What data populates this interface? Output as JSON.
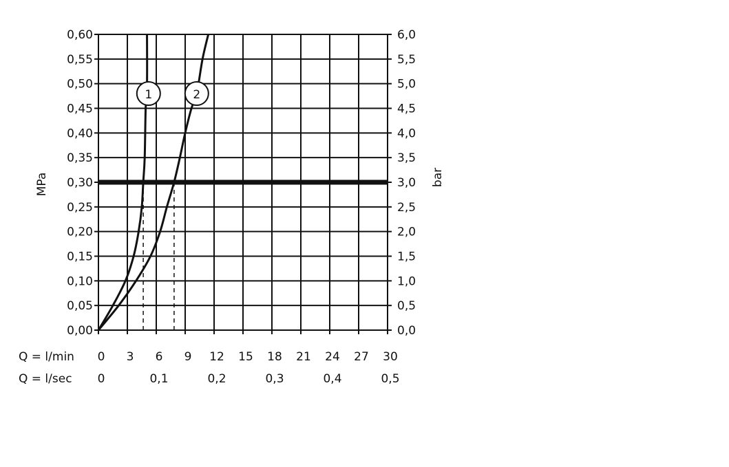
{
  "chart_data": {
    "type": "line",
    "ylabel_left": "MPa",
    "ylabel_right": "bar",
    "xlabel_rows": [
      {
        "label": "Q = l/min",
        "ticks": [
          0,
          3,
          6,
          9,
          12,
          15,
          18,
          21,
          24,
          27,
          30
        ],
        "tick_labels": [
          "0",
          "3",
          "6",
          "9",
          "12",
          "15",
          "18",
          "21",
          "24",
          "27",
          "30"
        ]
      },
      {
        "label": "Q = l/sec",
        "ticks": [
          0,
          6,
          12,
          18,
          24,
          30
        ],
        "tick_labels": [
          "0",
          "0,1",
          "0,2",
          "0,3",
          "0,4",
          "0,5"
        ]
      }
    ],
    "xlim": [
      0,
      30
    ],
    "ylim": [
      0,
      0.6
    ],
    "y_ticks": [
      0,
      0.05,
      0.1,
      0.15,
      0.2,
      0.25,
      0.3,
      0.35,
      0.4,
      0.45,
      0.5,
      0.55,
      0.6
    ],
    "y_tick_labels_left": [
      "0,00",
      "0,05",
      "0,10",
      "0,15",
      "0,20",
      "0,25",
      "0,30",
      "0,35",
      "0,40",
      "0,45",
      "0,50",
      "0,55",
      "0,60"
    ],
    "y_tick_labels_right": [
      "0,0",
      "0,5",
      "1,0",
      "1,5",
      "2,0",
      "2,5",
      "3,0",
      "3,5",
      "4,0",
      "4,5",
      "5,0",
      "5,5",
      "6,0"
    ],
    "grid": true,
    "reference_line_y": 0.3,
    "series": [
      {
        "name": "1",
        "x": [
          0,
          1.5,
          2.8,
          3.65,
          4.17,
          4.5,
          4.65,
          4.8,
          4.9,
          5.04,
          5.04
        ],
        "y": [
          0,
          0.05,
          0.1,
          0.15,
          0.2,
          0.25,
          0.3,
          0.35,
          0.45,
          0.5,
          0.6
        ],
        "label_at": [
          5.2,
          0.48
        ],
        "dashed_drop_x": 4.65
      },
      {
        "name": "2",
        "x": [
          0,
          2.1,
          3.9,
          5.4,
          6.4,
          7.1,
          7.85,
          8.45,
          9.0,
          9.65,
          10.2,
          10.8,
          11.4
        ],
        "y": [
          0,
          0.05,
          0.1,
          0.15,
          0.2,
          0.25,
          0.3,
          0.35,
          0.4,
          0.45,
          0.48,
          0.55,
          0.6
        ],
        "label_at": [
          10.2,
          0.48
        ],
        "dashed_drop_x": 7.85
      }
    ]
  }
}
